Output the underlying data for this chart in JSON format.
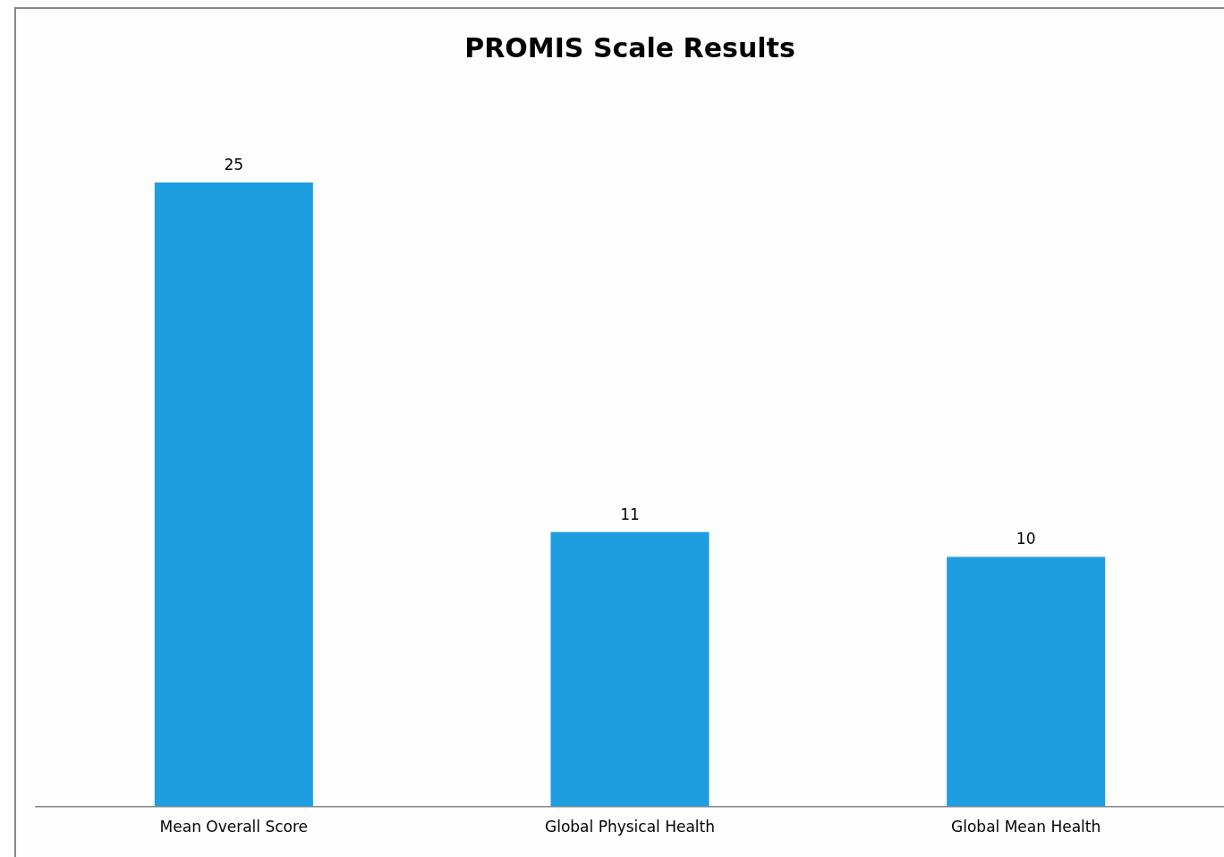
{
  "chart_data": {
    "type": "bar",
    "title": "PROMIS Scale Results",
    "categories": [
      "Mean Overall Score",
      "Global Physical Health",
      "Global Mean Health"
    ],
    "values": [
      25,
      11,
      10
    ],
    "color": "#1e9ee0",
    "data_labels": true,
    "grid": false,
    "legend": false,
    "tick_labels": "x"
  }
}
